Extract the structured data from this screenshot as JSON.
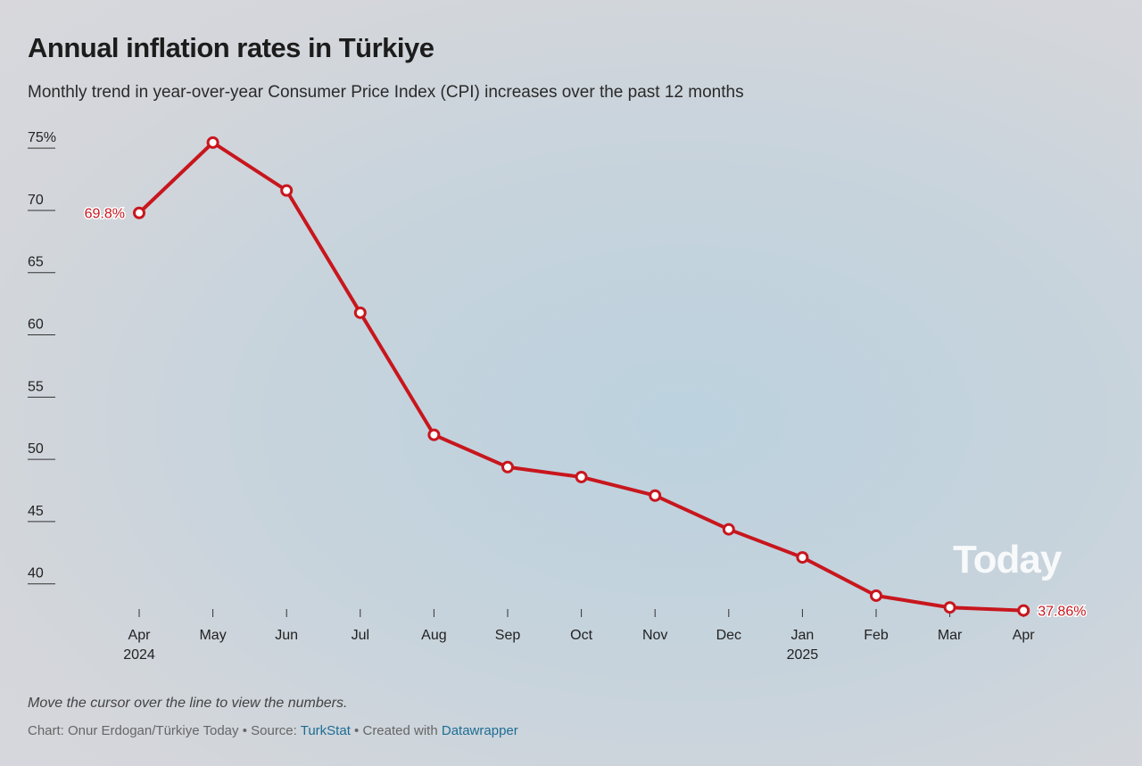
{
  "chart_data": {
    "type": "line",
    "title": "Annual inflation rates in Türkiye",
    "subtitle": "Monthly trend in year-over-year Consumer Price Index (CPI) increases over the past 12 months",
    "categories": [
      "Apr 2024",
      "May",
      "Jun",
      "Jul",
      "Aug",
      "Sep",
      "Oct",
      "Nov",
      "Dec",
      "Jan 2025",
      "Feb",
      "Mar",
      "Apr"
    ],
    "series": [
      {
        "name": "Annual inflation",
        "color": "#c8161d",
        "values": [
          69.8,
          75.45,
          71.6,
          61.78,
          51.97,
          49.38,
          48.58,
          47.09,
          44.38,
          42.12,
          39.05,
          38.1,
          37.86
        ],
        "value_labels": [
          "69.8%",
          null,
          null,
          null,
          null,
          null,
          null,
          null,
          null,
          null,
          null,
          null,
          "37.86%"
        ]
      }
    ],
    "ylim": [
      37.5,
      76
    ],
    "yticks": [
      40,
      45,
      50,
      55,
      60,
      65,
      70,
      {
        "value": 75,
        "label": "75%"
      }
    ],
    "note": "Move the cursor over the line to view the numbers.",
    "footer": {
      "byline": "Chart: Onur Erdogan/Türkiye Today",
      "separator": "•",
      "source_label": "Source:",
      "source": "TurkStat",
      "created_label": "Created with",
      "tool": "Datawrapper"
    },
    "logo": "Today"
  }
}
